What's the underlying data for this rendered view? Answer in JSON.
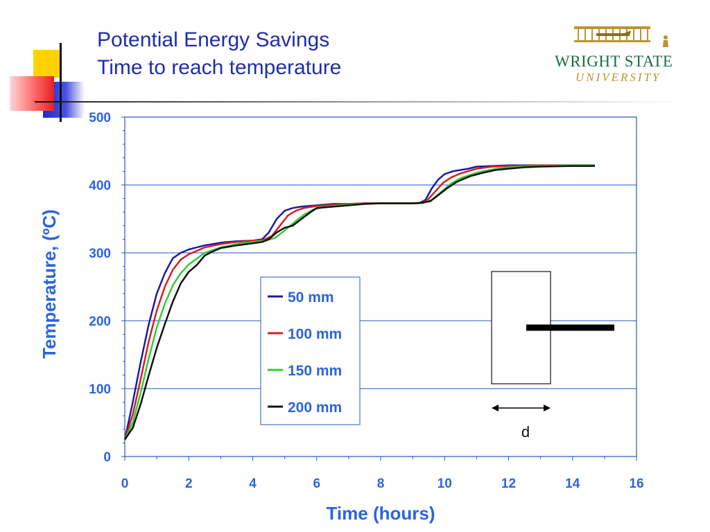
{
  "slide": {
    "title_line1": "Potential Energy Savings",
    "title_line2": "Time to reach temperature"
  },
  "logo": {
    "name": "WRIGHT STATE",
    "sub": "UNIVERSITY",
    "brand_green": "#1e6a4a",
    "brand_gold": "#b8962e"
  },
  "colors": {
    "title": "#1f2ea8",
    "axis_text": "#2b63e0",
    "frame": "#2255cc",
    "gridline": "#2255cc"
  },
  "chart_data": {
    "type": "line",
    "xlabel": "Time (hours)",
    "ylabel": "Temperature, (ºC)",
    "xlim": [
      0,
      16
    ],
    "ylim": [
      0,
      500
    ],
    "xticks": [
      0,
      2,
      4,
      6,
      8,
      10,
      12,
      14,
      16
    ],
    "yticks": [
      0,
      100,
      200,
      300,
      400,
      500
    ],
    "grid": "horizontal",
    "legend_position": "center",
    "series": [
      {
        "name": "50 mm",
        "color": "#1a1aa6",
        "points": [
          [
            0,
            25
          ],
          [
            0.25,
            80
          ],
          [
            0.5,
            140
          ],
          [
            0.75,
            195
          ],
          [
            1,
            240
          ],
          [
            1.25,
            270
          ],
          [
            1.5,
            292
          ],
          [
            1.75,
            300
          ],
          [
            2,
            305
          ],
          [
            2.5,
            311
          ],
          [
            3,
            315
          ],
          [
            3.5,
            317
          ],
          [
            4,
            318
          ],
          [
            4.3,
            320
          ],
          [
            4.5,
            330
          ],
          [
            4.75,
            350
          ],
          [
            5,
            362
          ],
          [
            5.25,
            366
          ],
          [
            5.5,
            368
          ],
          [
            6,
            370
          ],
          [
            6.5,
            372
          ],
          [
            7,
            372
          ],
          [
            7.5,
            373
          ],
          [
            8,
            373
          ],
          [
            8.5,
            373
          ],
          [
            9,
            373
          ],
          [
            9.2,
            373
          ],
          [
            9.4,
            378
          ],
          [
            9.6,
            395
          ],
          [
            9.8,
            408
          ],
          [
            10,
            416
          ],
          [
            10.25,
            420
          ],
          [
            10.5,
            422
          ],
          [
            10.75,
            424
          ],
          [
            11,
            427
          ],
          [
            11.5,
            428
          ],
          [
            12,
            429
          ],
          [
            13,
            429
          ],
          [
            14,
            429
          ],
          [
            14.7,
            429
          ]
        ]
      },
      {
        "name": "100 mm",
        "color": "#d42020",
        "points": [
          [
            0,
            25
          ],
          [
            0.25,
            62
          ],
          [
            0.5,
            115
          ],
          [
            0.75,
            170
          ],
          [
            1,
            215
          ],
          [
            1.25,
            250
          ],
          [
            1.5,
            275
          ],
          [
            1.75,
            290
          ],
          [
            2,
            298
          ],
          [
            2.5,
            308
          ],
          [
            3,
            313
          ],
          [
            3.5,
            316
          ],
          [
            4,
            318
          ],
          [
            4.35,
            319
          ],
          [
            4.6,
            325
          ],
          [
            4.85,
            340
          ],
          [
            5.1,
            355
          ],
          [
            5.35,
            362
          ],
          [
            5.6,
            366
          ],
          [
            6,
            369
          ],
          [
            6.5,
            371
          ],
          [
            7,
            372
          ],
          [
            7.5,
            373
          ],
          [
            8,
            373
          ],
          [
            8.5,
            373
          ],
          [
            9,
            373
          ],
          [
            9.2,
            373
          ],
          [
            9.45,
            377
          ],
          [
            9.7,
            390
          ],
          [
            9.95,
            403
          ],
          [
            10.2,
            411
          ],
          [
            10.5,
            417
          ],
          [
            11,
            424
          ],
          [
            11.5,
            427
          ],
          [
            12,
            428
          ],
          [
            13,
            429
          ],
          [
            14,
            429
          ],
          [
            14.7,
            429
          ]
        ]
      },
      {
        "name": "150 mm",
        "color": "#33cc33",
        "points": [
          [
            0,
            25
          ],
          [
            0.25,
            50
          ],
          [
            0.5,
            95
          ],
          [
            0.75,
            145
          ],
          [
            1,
            190
          ],
          [
            1.25,
            225
          ],
          [
            1.5,
            252
          ],
          [
            1.75,
            270
          ],
          [
            2,
            283
          ],
          [
            2.5,
            300
          ],
          [
            3,
            308
          ],
          [
            3.5,
            313
          ],
          [
            4,
            316
          ],
          [
            4.4,
            318
          ],
          [
            4.7,
            322
          ],
          [
            5,
            333
          ],
          [
            5.3,
            345
          ],
          [
            5.6,
            356
          ],
          [
            5.9,
            364
          ],
          [
            6.3,
            368
          ],
          [
            7,
            371
          ],
          [
            7.5,
            372
          ],
          [
            8,
            373
          ],
          [
            8.5,
            373
          ],
          [
            9,
            373
          ],
          [
            9.3,
            373
          ],
          [
            9.6,
            378
          ],
          [
            9.9,
            390
          ],
          [
            10.2,
            402
          ],
          [
            10.5,
            410
          ],
          [
            11,
            418
          ],
          [
            11.5,
            423
          ],
          [
            12,
            426
          ],
          [
            13,
            428
          ],
          [
            14,
            429
          ],
          [
            14.7,
            429
          ]
        ]
      },
      {
        "name": "200 mm",
        "color": "#111111",
        "points": [
          [
            0,
            25
          ],
          [
            0.25,
            42
          ],
          [
            0.5,
            78
          ],
          [
            0.75,
            120
          ],
          [
            1,
            160
          ],
          [
            1.25,
            195
          ],
          [
            1.5,
            228
          ],
          [
            1.75,
            255
          ],
          [
            2,
            272
          ],
          [
            2.25,
            282
          ],
          [
            2.5,
            296
          ],
          [
            2.75,
            302
          ],
          [
            3,
            307
          ],
          [
            3.5,
            311
          ],
          [
            4,
            314
          ],
          [
            4.3,
            316
          ],
          [
            4.5,
            320
          ],
          [
            4.75,
            330
          ],
          [
            5,
            337
          ],
          [
            5.25,
            340
          ],
          [
            5.5,
            349
          ],
          [
            5.75,
            358
          ],
          [
            6,
            366
          ],
          [
            6.5,
            368
          ],
          [
            7,
            370
          ],
          [
            7.5,
            372
          ],
          [
            8,
            373
          ],
          [
            8.5,
            373
          ],
          [
            9,
            373
          ],
          [
            9.3,
            374
          ],
          [
            9.55,
            376
          ],
          [
            9.8,
            385
          ],
          [
            10.1,
            396
          ],
          [
            10.4,
            405
          ],
          [
            10.8,
            413
          ],
          [
            11.2,
            418
          ],
          [
            11.6,
            422
          ],
          [
            12,
            424
          ],
          [
            12.5,
            426
          ],
          [
            13,
            427
          ],
          [
            14,
            428
          ],
          [
            14.7,
            428
          ]
        ]
      }
    ],
    "annotation": {
      "label": "d"
    }
  }
}
